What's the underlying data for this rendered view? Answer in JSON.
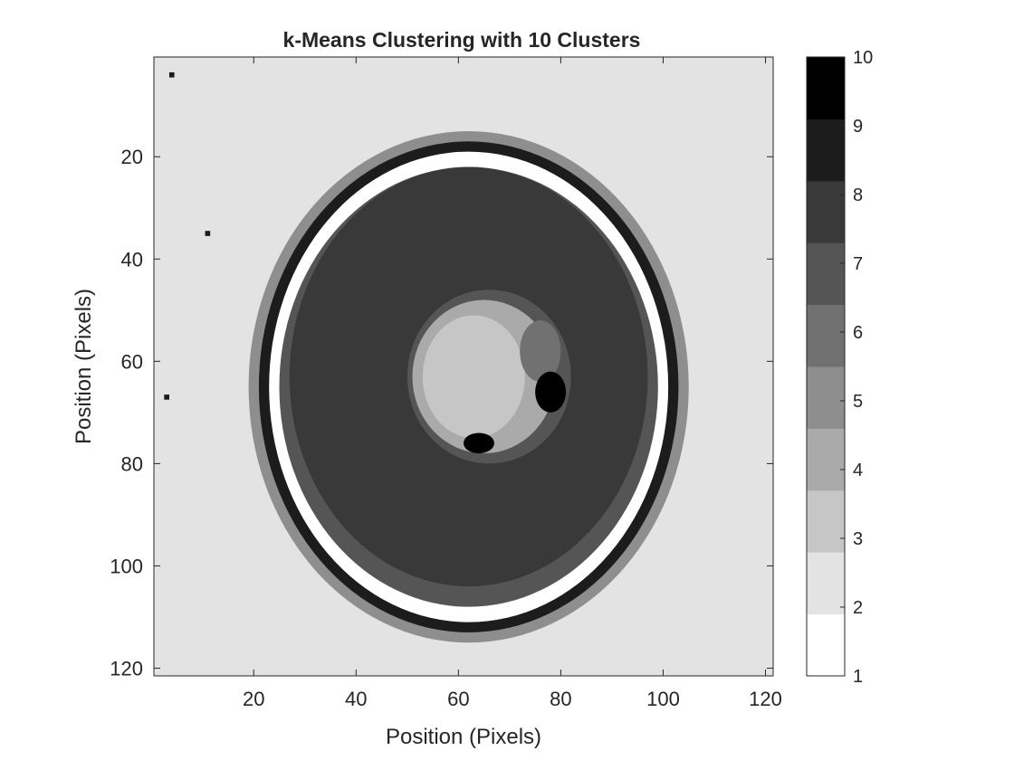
{
  "chart_data": {
    "type": "heatmap",
    "title": "k-Means Clustering with 10 Clusters",
    "xlabel": "Position (Pixels)",
    "ylabel": "Position (Pixels)",
    "xlim": [
      0.5,
      121.5
    ],
    "ylim": [
      0.5,
      121.5
    ],
    "y_direction": "reversed",
    "x_ticks": [
      20,
      40,
      60,
      80,
      100,
      120
    ],
    "y_ticks": [
      20,
      40,
      60,
      80,
      100,
      120
    ],
    "grid": false,
    "colormap": "gray-reversed",
    "colormap_colors": [
      "#ffffff",
      "#e3e3e3",
      "#c6c6c6",
      "#aaaaaa",
      "#8e8e8e",
      "#717171",
      "#555555",
      "#393939",
      "#1c1c1c",
      "#000000"
    ],
    "colorbar": {
      "placement": "right",
      "range": [
        1,
        10
      ],
      "ticks": [
        1,
        2,
        3,
        4,
        5,
        6,
        7,
        8,
        9,
        10
      ]
    },
    "clusters": [
      1,
      2,
      3,
      4,
      5,
      6,
      7,
      8,
      9,
      10
    ],
    "regions": [
      {
        "shape": "background",
        "cluster": 2
      },
      {
        "shape": "ellipse",
        "center": [
          62,
          65
        ],
        "radius": [
          43,
          50
        ],
        "cluster": 5
      },
      {
        "shape": "ellipse",
        "center": [
          62,
          65
        ],
        "radius": [
          41,
          48
        ],
        "cluster": 9
      },
      {
        "shape": "ellipse",
        "center": [
          62,
          65
        ],
        "radius": [
          39,
          46
        ],
        "cluster": 1
      },
      {
        "shape": "ellipse",
        "center": [
          62,
          65
        ],
        "radius": [
          37,
          43
        ],
        "cluster": 7
      },
      {
        "shape": "ellipse",
        "center": [
          62,
          63
        ],
        "radius": [
          35,
          41
        ],
        "cluster": 8
      },
      {
        "shape": "ellipse",
        "center": [
          66,
          63
        ],
        "radius": [
          16,
          17
        ],
        "cluster": 7
      },
      {
        "shape": "ellipse",
        "center": [
          65,
          63
        ],
        "radius": [
          14,
          15
        ],
        "cluster": 4
      },
      {
        "shape": "ellipse",
        "center": [
          63,
          63
        ],
        "radius": [
          10,
          12
        ],
        "cluster": 3
      },
      {
        "shape": "ellipse",
        "center": [
          76,
          58
        ],
        "radius": [
          4,
          6
        ],
        "cluster": 6
      },
      {
        "shape": "ellipse",
        "center": [
          78,
          66
        ],
        "radius": [
          3,
          4
        ],
        "cluster": 10
      },
      {
        "shape": "ellipse",
        "center": [
          64,
          76
        ],
        "radius": [
          3,
          2
        ],
        "cluster": 10
      },
      {
        "shape": "point",
        "center": [
          4,
          4
        ],
        "cluster": 9
      },
      {
        "shape": "point",
        "center": [
          11,
          35
        ],
        "cluster": 9
      },
      {
        "shape": "point",
        "center": [
          3,
          67
        ],
        "cluster": 9
      }
    ]
  }
}
